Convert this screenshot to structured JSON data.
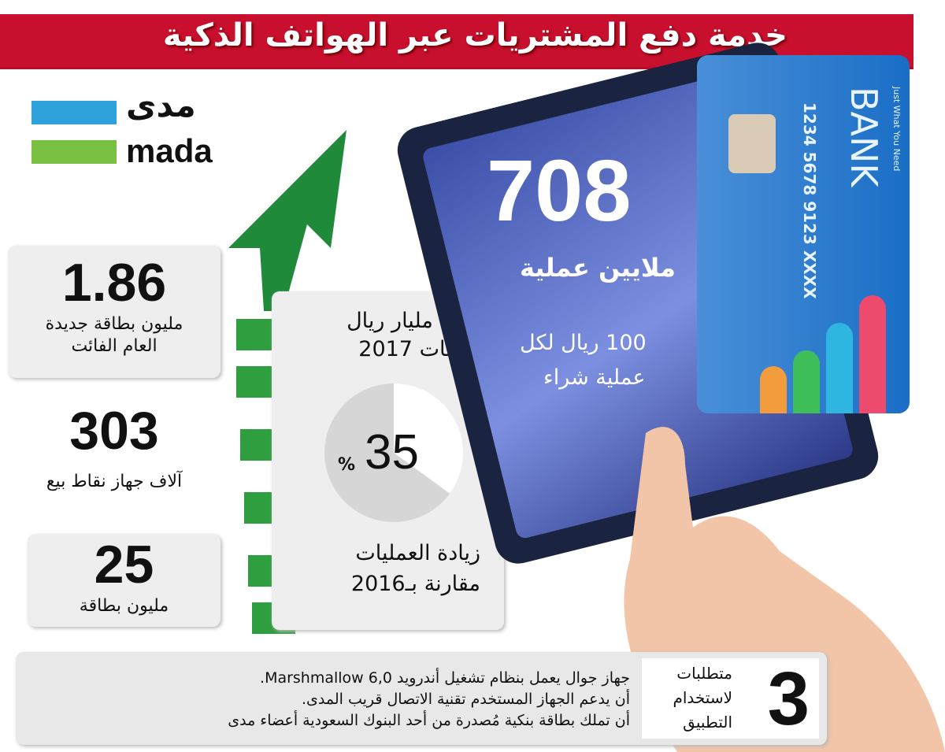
{
  "title": "خدمة دفع المشتريات عبر الهواتف الذكية",
  "logo": {
    "arabic": "مدى",
    "latin": "mada",
    "colors": [
      "#2fa2dc",
      "#7ac143"
    ]
  },
  "stats": [
    {
      "value": "1.86",
      "label1": "مليون بطاقة جديدة",
      "label2": "العام الفائت"
    },
    {
      "value": "303",
      "label1": "آلاف جهاز نقاط بيع"
    },
    {
      "value": "25",
      "label1": "مليون بطاقة"
    }
  ],
  "center": {
    "sales1": "200 مليار ريال",
    "sales2": "مبيعات 2017",
    "percent": "35",
    "percent_sign": "%",
    "percent_value": 35,
    "growth1": "زيادة العمليات",
    "growth2": "مقارنة بـ2016"
  },
  "tablet": {
    "value": "708",
    "unit": "ملايين عملية",
    "avg1": "100 ريال لكل",
    "avg2": "عملية شراء"
  },
  "card": {
    "bank": "BANK",
    "tagline": "Just What You Need",
    "number": "1234 5678 9123 XXXX",
    "bar_colors": [
      "#f39c3d",
      "#3fbf5a",
      "#2fb6e0",
      "#ee4a6e"
    ]
  },
  "requirements": {
    "count": "3",
    "heading": [
      "متطلبات",
      "لاستخدام",
      "التطبيق"
    ],
    "items": [
      "جهاز جوال يعمل بنظام تشغيل أندرويد Marshmallow 6,0.",
      "أن يدعم الجهاز المستخدم تقنية الاتصال قريب المدى.",
      "أن تملك بطاقة بنكية مُصدرة من أحد البنوك السعودية  أعضاء مدى"
    ]
  }
}
